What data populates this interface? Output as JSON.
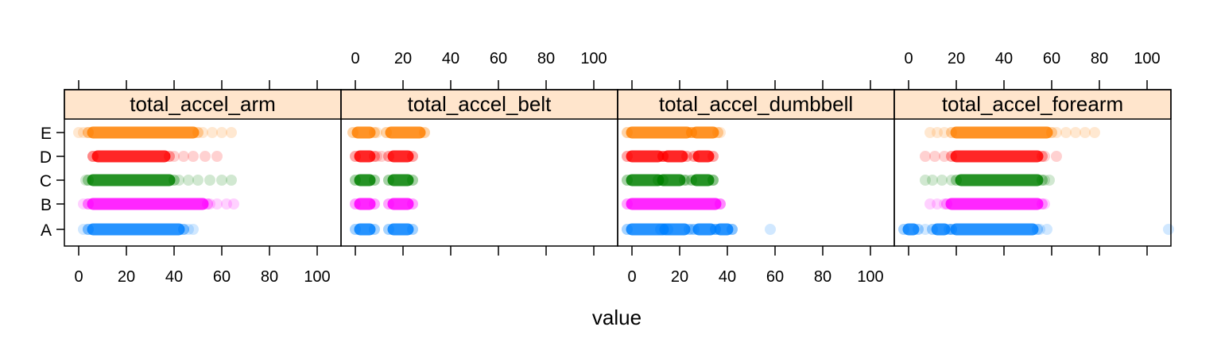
{
  "chart_data": {
    "type": "scatter",
    "xlabel": "value",
    "xlim": [
      -6,
      110
    ],
    "x_ticks": [
      0,
      20,
      40,
      60,
      80,
      100
    ],
    "x_tick_labels": [
      "0",
      "20",
      "40",
      "60",
      "80",
      "100"
    ],
    "categories": [
      "A",
      "B",
      "C",
      "D",
      "E"
    ],
    "category_colors": {
      "A": "#0080ff",
      "B": "#ff00ff",
      "C": "#008000",
      "D": "#ff0000",
      "E": "#ff8000"
    },
    "panels": [
      {
        "name": "total_accel_arm",
        "series": [
          {
            "category": "A",
            "dense": [
              [
                6,
                42
              ]
            ],
            "sparse": [
              2,
              4,
              44,
              46,
              48
            ]
          },
          {
            "category": "B",
            "dense": [
              [
                6,
                52
              ]
            ],
            "sparse": [
              2,
              4,
              55,
              58,
              62,
              65
            ]
          },
          {
            "category": "C",
            "dense": [
              [
                6,
                38
              ]
            ],
            "sparse": [
              3,
              42,
              46,
              50,
              55,
              60,
              64
            ]
          },
          {
            "category": "D",
            "dense": [
              [
                8,
                36
              ]
            ],
            "sparse": [
              6,
              40,
              44,
              48,
              53,
              58
            ]
          },
          {
            "category": "E",
            "dense": [
              [
                6,
                48
              ]
            ],
            "sparse": [
              0,
              2,
              4,
              52,
              56,
              60,
              64
            ]
          }
        ]
      },
      {
        "name": "total_accel_belt",
        "series": [
          {
            "category": "A",
            "dense": [
              [
                2,
                6
              ],
              [
                16,
                22
              ]
            ],
            "sparse": []
          },
          {
            "category": "B",
            "dense": [
              [
                2,
                6
              ],
              [
                16,
                22
              ]
            ],
            "sparse": []
          },
          {
            "category": "C",
            "dense": [
              [
                2,
                6
              ],
              [
                16,
                22
              ]
            ],
            "sparse": []
          },
          {
            "category": "D",
            "dense": [
              [
                2,
                6
              ],
              [
                16,
                22
              ]
            ],
            "sparse": [
              9,
              11
            ]
          },
          {
            "category": "E",
            "dense": [
              [
                1,
                6
              ],
              [
                15,
                27
              ]
            ],
            "sparse": [
              9
            ]
          }
        ]
      },
      {
        "name": "total_accel_dumbbell",
        "series": [
          {
            "category": "A",
            "dense": [
              [
                0,
                13
              ],
              [
                14,
                22
              ],
              [
                28,
                33
              ],
              [
                37,
                40
              ]
            ],
            "sparse": [
              25,
              42,
              58
            ]
          },
          {
            "category": "B",
            "dense": [
              [
                0,
                35
              ]
            ],
            "sparse": [
              37
            ]
          },
          {
            "category": "C",
            "dense": [
              [
                0,
                11
              ],
              [
                13,
                20
              ],
              [
                27,
                32
              ]
            ],
            "sparse": [
              23,
              34
            ]
          },
          {
            "category": "D",
            "dense": [
              [
                0,
                11
              ],
              [
                15,
                21
              ],
              [
                28,
                32
              ]
            ],
            "sparse": [
              13
            ]
          },
          {
            "category": "E",
            "dense": [
              [
                0,
                23
              ],
              [
                27,
                34
              ]
            ],
            "sparse": [
              25,
              37
            ]
          }
        ]
      },
      {
        "name": "total_accel_forearm",
        "series": [
          {
            "category": "A",
            "dense": [
              [
                20,
                52
              ],
              [
                12,
                15
              ],
              [
                0,
                2
              ]
            ],
            "sparse": [
              7,
              18,
              55,
              58,
              109
            ]
          },
          {
            "category": "B",
            "dense": [
              [
                18,
                54
              ]
            ],
            "sparse": [
              9,
              12,
              15,
              57
            ]
          },
          {
            "category": "C",
            "dense": [
              [
                22,
                54
              ]
            ],
            "sparse": [
              7,
              10,
              14,
              18,
              57,
              59
            ]
          },
          {
            "category": "D",
            "dense": [
              [
                20,
                54
              ]
            ],
            "sparse": [
              7,
              11,
              15,
              57,
              62
            ]
          },
          {
            "category": "E",
            "dense": [
              [
                20,
                58
              ]
            ],
            "sparse": [
              9,
              12,
              15,
              62,
              66,
              70,
              74,
              78
            ]
          }
        ]
      }
    ]
  }
}
